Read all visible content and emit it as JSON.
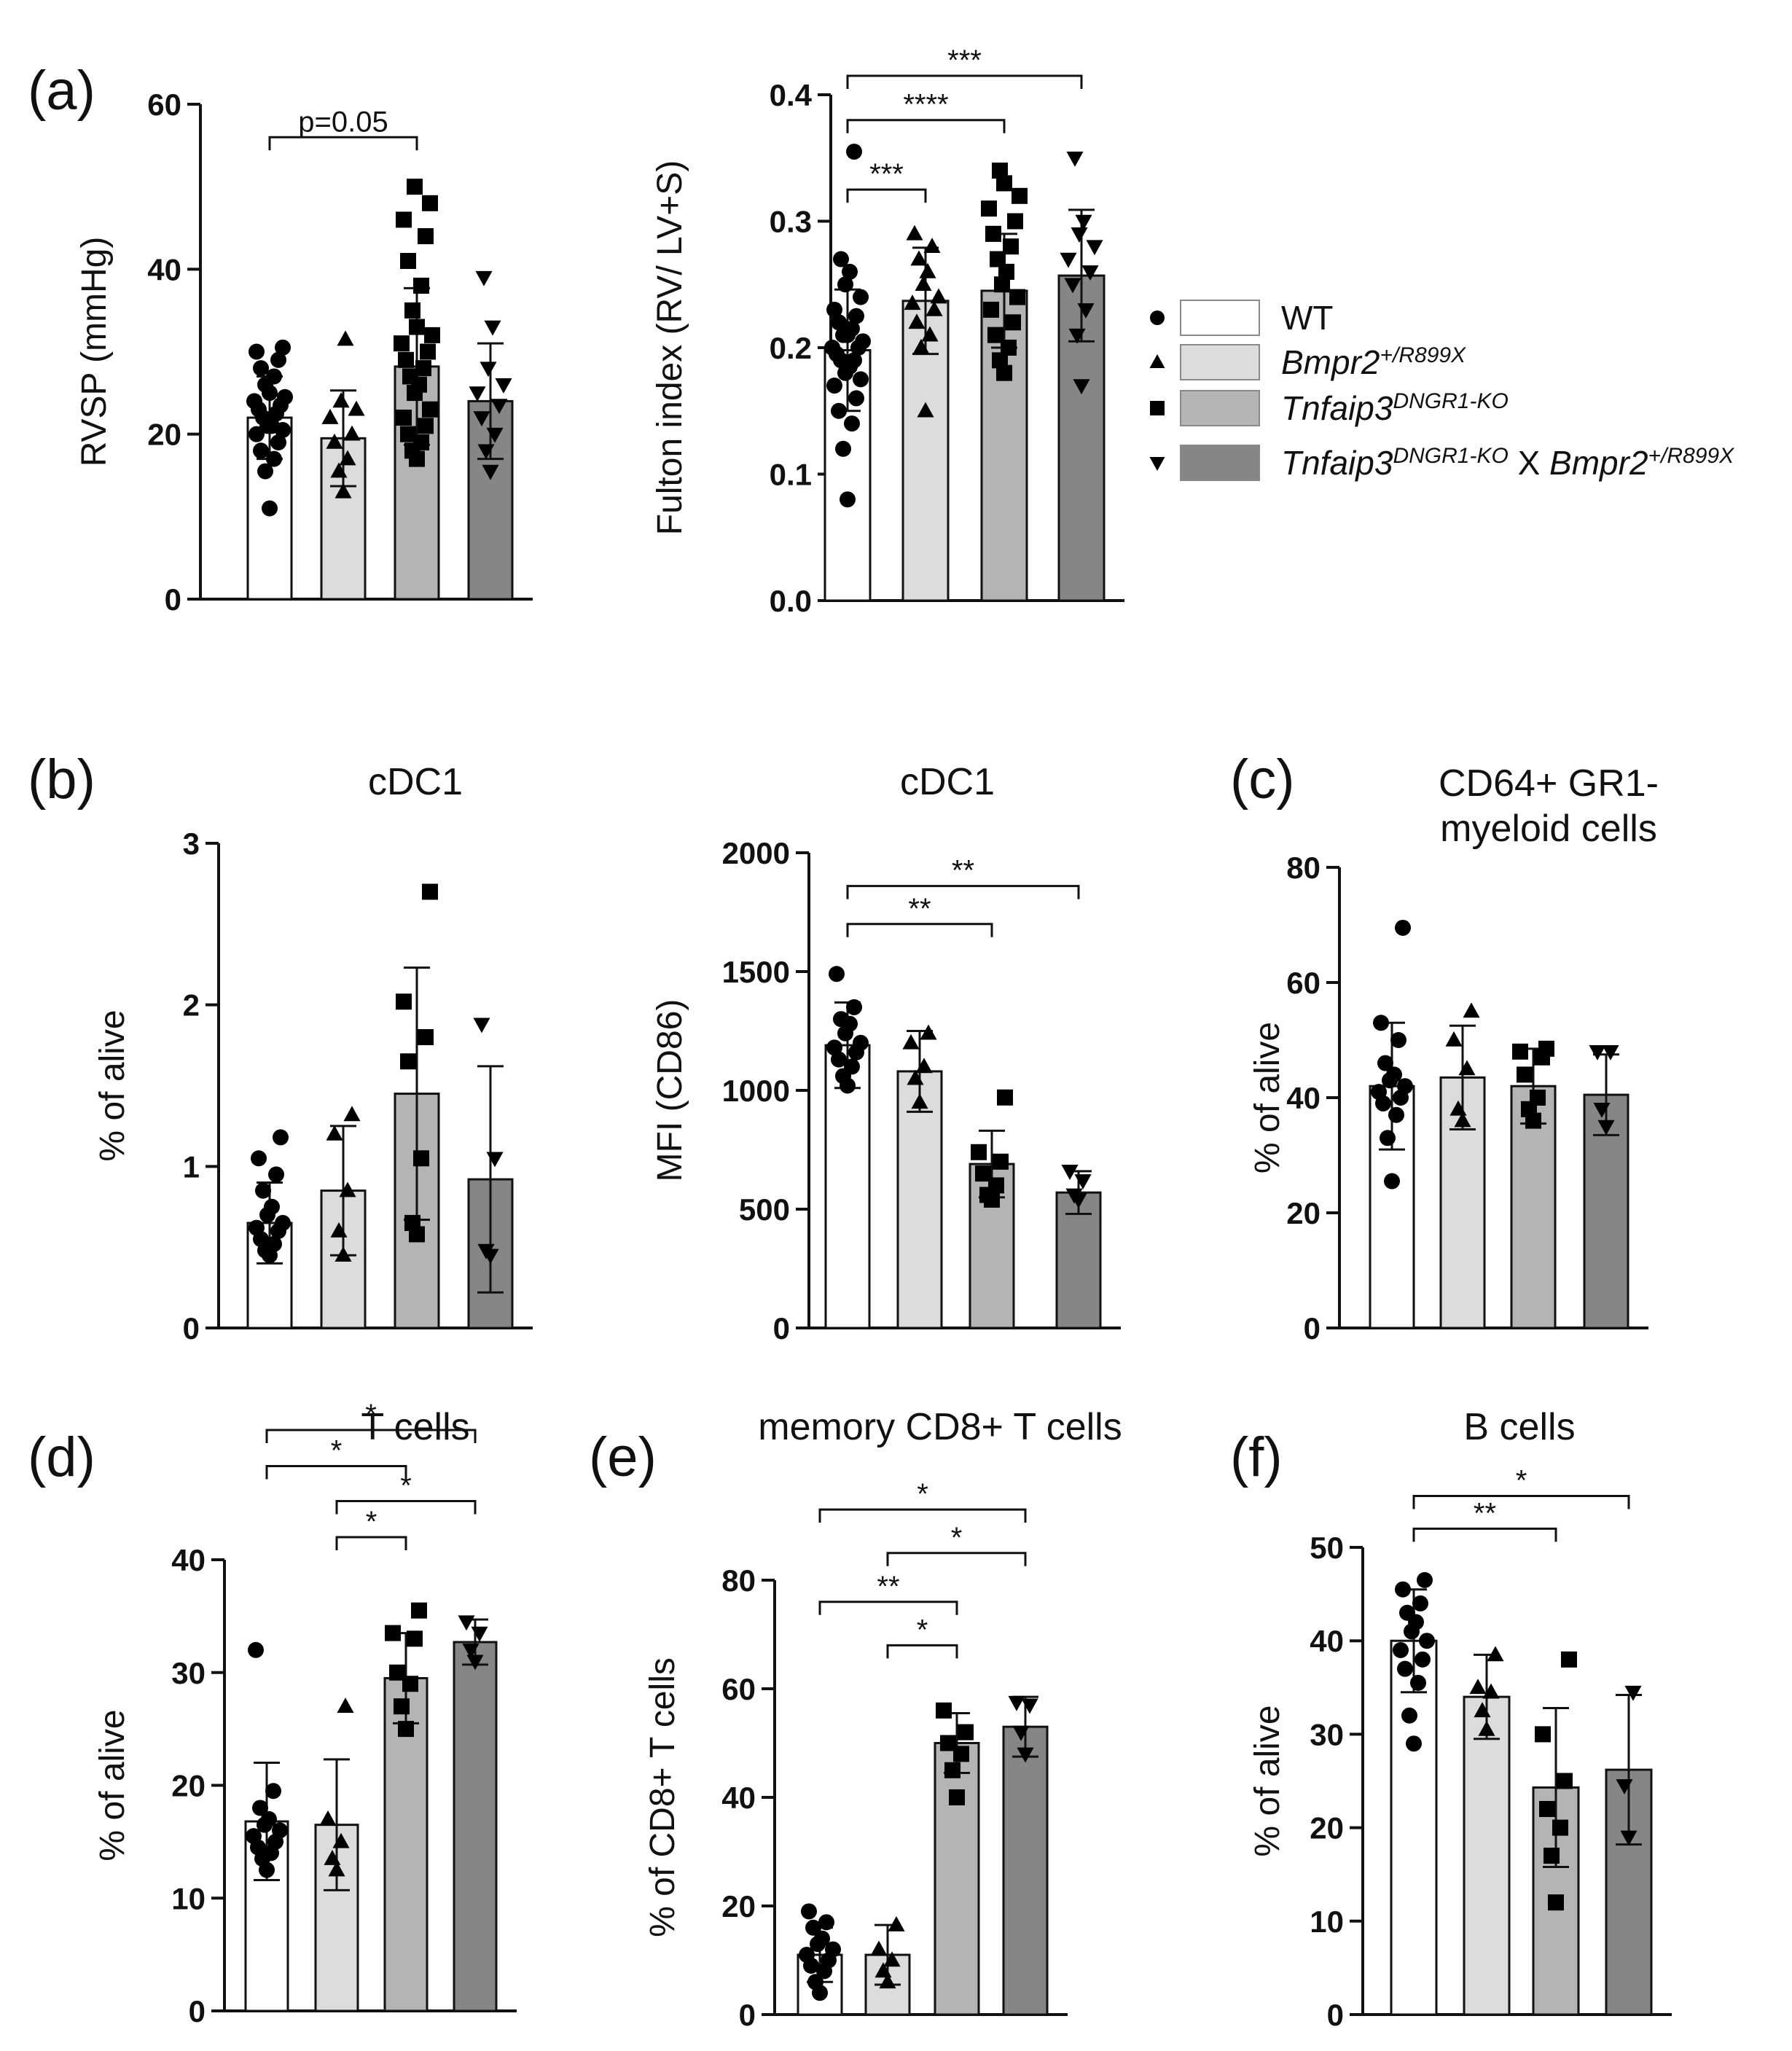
{
  "figure": {
    "legend": {
      "entries": [
        {
          "marker": "circle",
          "color": "#ffffff",
          "parts": [
            {
              "text": "WT"
            }
          ]
        },
        {
          "marker": "triangle",
          "color": "#dcdcdc",
          "parts": [
            {
              "text": "Bmpr2",
              "it": true
            },
            {
              "text": "+/R899X",
              "sup": true,
              "it": true
            }
          ]
        },
        {
          "marker": "square",
          "color": "#b4b4b4",
          "parts": [
            {
              "text": "Tnfaip3",
              "it": true
            },
            {
              "text": "DNGR1-KO",
              "sup": true,
              "it": true
            }
          ]
        },
        {
          "marker": "triangle-down",
          "color": "#868686",
          "parts": [
            {
              "text": "Tnfaip3",
              "it": true
            },
            {
              "text": "DNGR1-KO",
              "sup": true,
              "it": true
            },
            {
              "text": " X "
            },
            {
              "text": "Bmpr2",
              "it": true
            },
            {
              "text": "+/R899X",
              "sup": true,
              "it": true
            }
          ]
        }
      ]
    }
  },
  "chart_data": [
    {
      "id": "a1",
      "panel_label": "(a)",
      "type": "bar",
      "title": "",
      "ylabel": "RVSP (mmHg)",
      "ylim": [
        0,
        60
      ],
      "yticks": [
        "0",
        "20",
        "40",
        "60"
      ],
      "categories": [
        "WT",
        "Bmpr2+/R899X",
        "Tnfaip3DNGR1-KO",
        "Tnfaip3DNGR1-KO X Bmpr2+/R899X"
      ],
      "values": [
        22,
        19.5,
        28.2,
        24
      ],
      "errors": [
        5,
        5.8,
        9.5,
        7
      ],
      "points": [
        [
          11,
          15.5,
          17,
          18,
          19,
          20,
          20.5,
          21,
          21,
          22,
          22.5,
          23,
          23.5,
          24,
          24.5,
          25,
          26,
          27,
          28,
          29,
          30,
          30.5
        ],
        [
          13,
          15.5,
          17,
          19,
          20,
          22,
          23,
          24,
          31.5
        ],
        [
          17,
          18,
          19,
          20,
          21,
          22,
          23,
          25,
          26,
          27,
          28,
          29,
          30,
          31,
          32,
          33,
          35,
          38,
          41,
          44,
          46,
          48,
          50
        ],
        [
          15.5,
          18,
          20,
          22,
          23.5,
          25,
          26,
          28,
          33,
          39
        ]
      ],
      "comparisons": [
        {
          "from": 0,
          "to": 2,
          "label": "p=0.05",
          "y": 56
        }
      ]
    },
    {
      "id": "a2",
      "panel_label": "",
      "type": "bar",
      "title": "",
      "ylabel": "Fulton index (RV/ LV+S)",
      "ylim": [
        0,
        0.4
      ],
      "yticks": [
        "0.0",
        "0.1",
        "0.2",
        "0.3",
        "0.4"
      ],
      "categories": [
        "WT",
        "Bmpr2+/R899X",
        "Tnfaip3DNGR1-KO",
        "Tnfaip3DNGR1-KO X Bmpr2+/R899X"
      ],
      "values": [
        0.198,
        0.237,
        0.245,
        0.257
      ],
      "errors": [
        0.048,
        0.042,
        0.045,
        0.052
      ],
      "points": [
        [
          0.08,
          0.12,
          0.14,
          0.15,
          0.16,
          0.17,
          0.175,
          0.18,
          0.185,
          0.19,
          0.19,
          0.195,
          0.2,
          0.2,
          0.205,
          0.21,
          0.21,
          0.215,
          0.22,
          0.225,
          0.23,
          0.24,
          0.25,
          0.26,
          0.27,
          0.355
        ],
        [
          0.15,
          0.2,
          0.21,
          0.22,
          0.23,
          0.235,
          0.24,
          0.25,
          0.26,
          0.27,
          0.28,
          0.29
        ],
        [
          0.18,
          0.19,
          0.2,
          0.21,
          0.22,
          0.23,
          0.24,
          0.25,
          0.26,
          0.27,
          0.28,
          0.29,
          0.3,
          0.31,
          0.32,
          0.33,
          0.34
        ],
        [
          0.17,
          0.21,
          0.23,
          0.25,
          0.26,
          0.27,
          0.28,
          0.29,
          0.3,
          0.35
        ]
      ],
      "comparisons": [
        {
          "from": 0,
          "to": 1,
          "label": "***",
          "y": 0.325
        },
        {
          "from": 0,
          "to": 2,
          "label": "****",
          "y": 0.38
        },
        {
          "from": 0,
          "to": 3,
          "label": "***",
          "y": 0.415
        }
      ]
    },
    {
      "id": "b1",
      "panel_label": "(b)",
      "type": "bar",
      "title": "cDC1",
      "ylabel": "% of alive",
      "ylim": [
        0,
        3
      ],
      "yticks": [
        "0",
        "1",
        "2",
        "3"
      ],
      "categories": [
        "WT",
        "Bmpr2+/R899X",
        "Tnfaip3DNGR1-KO",
        "Tnfaip3DNGR1-KO X Bmpr2+/R899X"
      ],
      "values": [
        0.65,
        0.85,
        1.45,
        0.92
      ],
      "errors": [
        0.25,
        0.4,
        0.78,
        0.7
      ],
      "points": [
        [
          0.45,
          0.48,
          0.52,
          0.55,
          0.6,
          0.62,
          0.65,
          0.7,
          0.75,
          0.85,
          0.95,
          1.05,
          1.18
        ],
        [
          0.45,
          0.6,
          0.85,
          1.2,
          1.32
        ],
        [
          0.58,
          0.65,
          1.05,
          1.65,
          1.8,
          2.02,
          2.7
        ],
        [
          0.45,
          0.48,
          1.05,
          1.88
        ]
      ],
      "comparisons": []
    },
    {
      "id": "b2",
      "panel_label": "",
      "type": "bar",
      "title": "cDC1",
      "ylabel": "MFI (CD86)",
      "ylim": [
        0,
        2000
      ],
      "yticks": [
        "0",
        "500",
        "1000",
        "1500",
        "2000"
      ],
      "categories": [
        "WT",
        "Bmpr2+/R899X",
        "Tnfaip3DNGR1-KO",
        "Tnfaip3DNGR1-KO X Bmpr2+/R899X"
      ],
      "values": [
        1190,
        1080,
        690,
        570
      ],
      "errors": [
        180,
        170,
        140,
        90
      ],
      "points": [
        [
          1020,
          1060,
          1100,
          1130,
          1160,
          1180,
          1200,
          1240,
          1280,
          1300,
          1350,
          1490
        ],
        [
          950,
          1050,
          1100,
          1200,
          1240
        ],
        [
          540,
          560,
          600,
          650,
          700,
          740,
          970
        ],
        [
          540,
          560,
          620,
          660
        ]
      ],
      "comparisons": [
        {
          "from": 0,
          "to": 2,
          "label": "**",
          "y": 1700
        },
        {
          "from": 0,
          "to": 3,
          "label": "**",
          "y": 1860
        }
      ]
    },
    {
      "id": "c",
      "panel_label": "(c)",
      "type": "bar",
      "title": "CD64+ GR1- myeloid cells",
      "ylabel": "% of alive",
      "ylim": [
        0,
        80
      ],
      "yticks": [
        "0",
        "20",
        "40",
        "60",
        "80"
      ],
      "categories": [
        "WT",
        "Bmpr2+/R899X",
        "Tnfaip3DNGR1-KO",
        "Tnfaip3DNGR1-KO X Bmpr2+/R899X"
      ],
      "values": [
        42,
        43.5,
        42,
        40.5
      ],
      "errors": [
        11,
        9,
        6.5,
        7
      ],
      "points": [
        [
          25.5,
          33,
          37,
          39,
          40,
          41,
          42,
          43,
          44,
          46,
          50,
          53,
          69.5
        ],
        [
          36,
          38,
          45,
          50,
          55
        ],
        [
          36,
          38,
          40,
          44,
          47,
          48,
          48.5
        ],
        [
          35,
          38,
          48,
          48
        ]
      ],
      "comparisons": []
    },
    {
      "id": "d",
      "panel_label": "(d)",
      "type": "bar",
      "title": "T cells",
      "ylabel": "% of alive",
      "ylim": [
        0,
        40
      ],
      "yticks": [
        "0",
        "10",
        "20",
        "30",
        "40"
      ],
      "categories": [
        "WT",
        "Bmpr2+/R899X",
        "Tnfaip3DNGR1-KO",
        "Tnfaip3DNGR1-KO X Bmpr2+/R899X"
      ],
      "values": [
        16.8,
        16.5,
        29.5,
        32.7
      ],
      "errors": [
        5.2,
        5.8,
        4,
        2
      ],
      "points": [
        [
          12.5,
          13.5,
          14,
          14.5,
          15,
          15.5,
          16,
          16.5,
          17,
          18,
          19.5,
          32
        ],
        [
          12.5,
          13.5,
          15,
          17,
          27
        ],
        [
          25,
          27,
          29,
          30,
          33,
          33.5,
          35.5
        ],
        [
          31,
          32,
          33.5,
          34.5
        ]
      ],
      "comparisons": [
        {
          "from": 1,
          "to": 2,
          "label": "*",
          "y": 42
        },
        {
          "from": 1,
          "to": 3,
          "label": "*",
          "y": 45.2
        },
        {
          "from": 0,
          "to": 2,
          "label": "*",
          "y": 48.3
        },
        {
          "from": 0,
          "to": 3,
          "label": "*",
          "y": 51.5
        }
      ]
    },
    {
      "id": "e",
      "panel_label": "(e)",
      "type": "bar",
      "title": "memory CD8+ T cells",
      "ylabel": "% of CD8+ T cells",
      "ylim": [
        0,
        80
      ],
      "yticks": [
        "0",
        "20",
        "40",
        "60",
        "80"
      ],
      "categories": [
        "WT",
        "Bmpr2+/R899X",
        "Tnfaip3DNGR1-KO",
        "Tnfaip3DNGR1-KO X Bmpr2+/R899X"
      ],
      "values": [
        11,
        11,
        50,
        53
      ],
      "errors": [
        5,
        5.5,
        5.5,
        5.5
      ],
      "points": [
        [
          4,
          6,
          8,
          9,
          10,
          11,
          12,
          13,
          14,
          16,
          17,
          19
        ],
        [
          6,
          8,
          10,
          12,
          16.5
        ],
        [
          40,
          45,
          48,
          50,
          52,
          56
        ],
        [
          48,
          52,
          57,
          57.5
        ]
      ],
      "comparisons": [
        {
          "from": 1,
          "to": 2,
          "label": "*",
          "y": 68
        },
        {
          "from": 0,
          "to": 2,
          "label": "**",
          "y": 76
        },
        {
          "from": 1,
          "to": 3,
          "label": "*",
          "y": 85
        },
        {
          "from": 0,
          "to": 3,
          "label": "*",
          "y": 93
        }
      ]
    },
    {
      "id": "f",
      "panel_label": "(f)",
      "type": "bar",
      "title": "B cells",
      "ylabel": "% of alive",
      "ylim": [
        0,
        50
      ],
      "yticks": [
        "0",
        "10",
        "20",
        "30",
        "40",
        "50"
      ],
      "categories": [
        "WT",
        "Bmpr2+/R899X",
        "Tnfaip3DNGR1-KO",
        "Tnfaip3DNGR1-KO X Bmpr2+/R899X"
      ],
      "values": [
        40,
        34,
        24.3,
        26.2
      ],
      "errors": [
        5.5,
        4.5,
        8.5,
        8
      ],
      "points": [
        [
          29,
          32,
          35.5,
          37,
          38,
          39,
          40,
          41,
          42,
          43,
          44,
          45.5,
          46.5
        ],
        [
          30.5,
          32.5,
          34.5,
          35,
          38.5
        ],
        [
          12,
          17,
          20,
          22,
          25,
          30,
          38
        ],
        [
          19,
          24.5,
          34.5
        ]
      ],
      "comparisons": [
        {
          "from": 0,
          "to": 2,
          "label": "**",
          "y": 52
        },
        {
          "from": 0,
          "to": 3,
          "label": "*",
          "y": 55.5
        }
      ]
    }
  ]
}
